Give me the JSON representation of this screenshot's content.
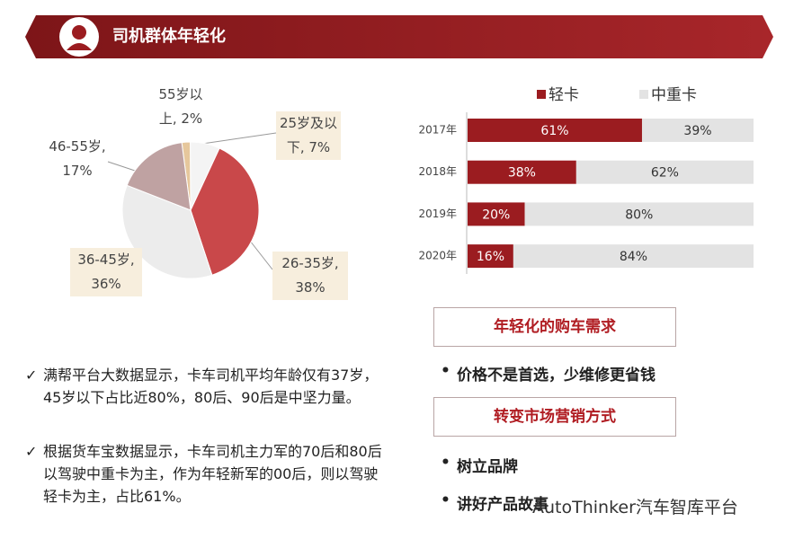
{
  "header": {
    "title": "司机群体年轻化"
  },
  "chart_data": [
    {
      "type": "pie",
      "values": [
        2,
        7,
        38,
        36,
        17
      ],
      "value_labels": [
        "55岁以上, 2%",
        "25岁及以下, 7%",
        "26-35岁, 38%",
        "36-45岁, 36%",
        "46-55岁, 17%"
      ],
      "colors": [
        "#e6c79c",
        "#f4f4f4",
        "#c9484a",
        "#ececec",
        "#bfa2a2"
      ]
    },
    {
      "type": "stacked-bar-horizontal",
      "categories": [
        "2017年",
        "2018年",
        "2019年",
        "2020年"
      ],
      "series": [
        {
          "name": "轻卡",
          "color": "#9b1c20",
          "values": [
            61,
            38,
            20,
            16
          ],
          "value_labels": [
            "61%",
            "38%",
            "20%",
            "16%"
          ]
        },
        {
          "name": "中重卡",
          "color": "#e3e3e3",
          "values": [
            39,
            62,
            80,
            84
          ],
          "value_labels": [
            "39%",
            "62%",
            "80%",
            "84%"
          ]
        }
      ],
      "xlim": [
        0,
        100
      ],
      "legend": "top"
    }
  ],
  "notes": [
    "满帮平台大数据显示，卡车司机平均年龄仅有37岁，45岁以下占比近80%，80后、90后是中坚力量。",
    "根据货车宝数据显示，卡车司机主力军的70后和80后以驾驶中重卡为主，作为年轻新军的00后，则以驾驶轻卡为主，占比61%。"
  ],
  "panels": [
    {
      "heading": "年轻化的购车需求",
      "bullets": [
        "价格不是首选，少维修更省钱"
      ]
    },
    {
      "heading": "转变市场营销方式",
      "bullets": [
        "树立品牌",
        "讲好产品故事"
      ]
    }
  ],
  "watermark": "AutoThinker汽车智库平台"
}
